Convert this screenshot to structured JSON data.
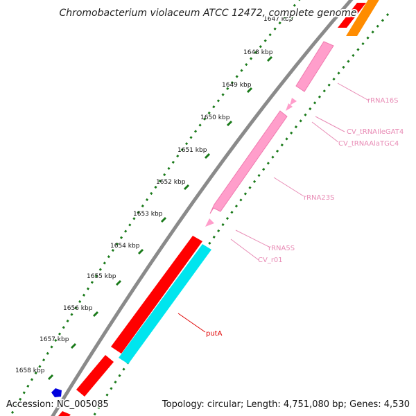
{
  "title": "Chromobacterium violaceum ATCC 12472, complete genome",
  "footer": {
    "accession": "Accession: NC_005085",
    "summary": "Topology: circular; Length: 4,751,080 bp; Genes: 4,530"
  },
  "ticks": [
    "1647 kbp",
    "1648 kbp",
    "1649 kbp",
    "1650 kbp",
    "1651 kbp",
    "1652 kbp",
    "1653 kbp",
    "1654 kbp",
    "1655 kbp",
    "1656 kbp",
    "1657 kbp",
    "1658 kbp"
  ],
  "feature_labels": [
    "rRNA16S",
    "CV_tRNAIleGAT4",
    "CV_tRNAAlaTGC4",
    "rRNA23S",
    "rRNA5S",
    "CV_r01",
    "putA"
  ],
  "colors": {
    "backbone": "#8a8a8a",
    "tick_mark": "#1a7a1a",
    "rRNA": "#ff9ecb",
    "tRNA": "#ff9ecb",
    "CDS_forward": "#ff0000",
    "CDS_reverse": "#00e5ee",
    "orange_feature": "#ff8c00",
    "blue_feature": "#0000dd",
    "rna_label": "#e88bb5",
    "putA_label": "#e00000"
  }
}
